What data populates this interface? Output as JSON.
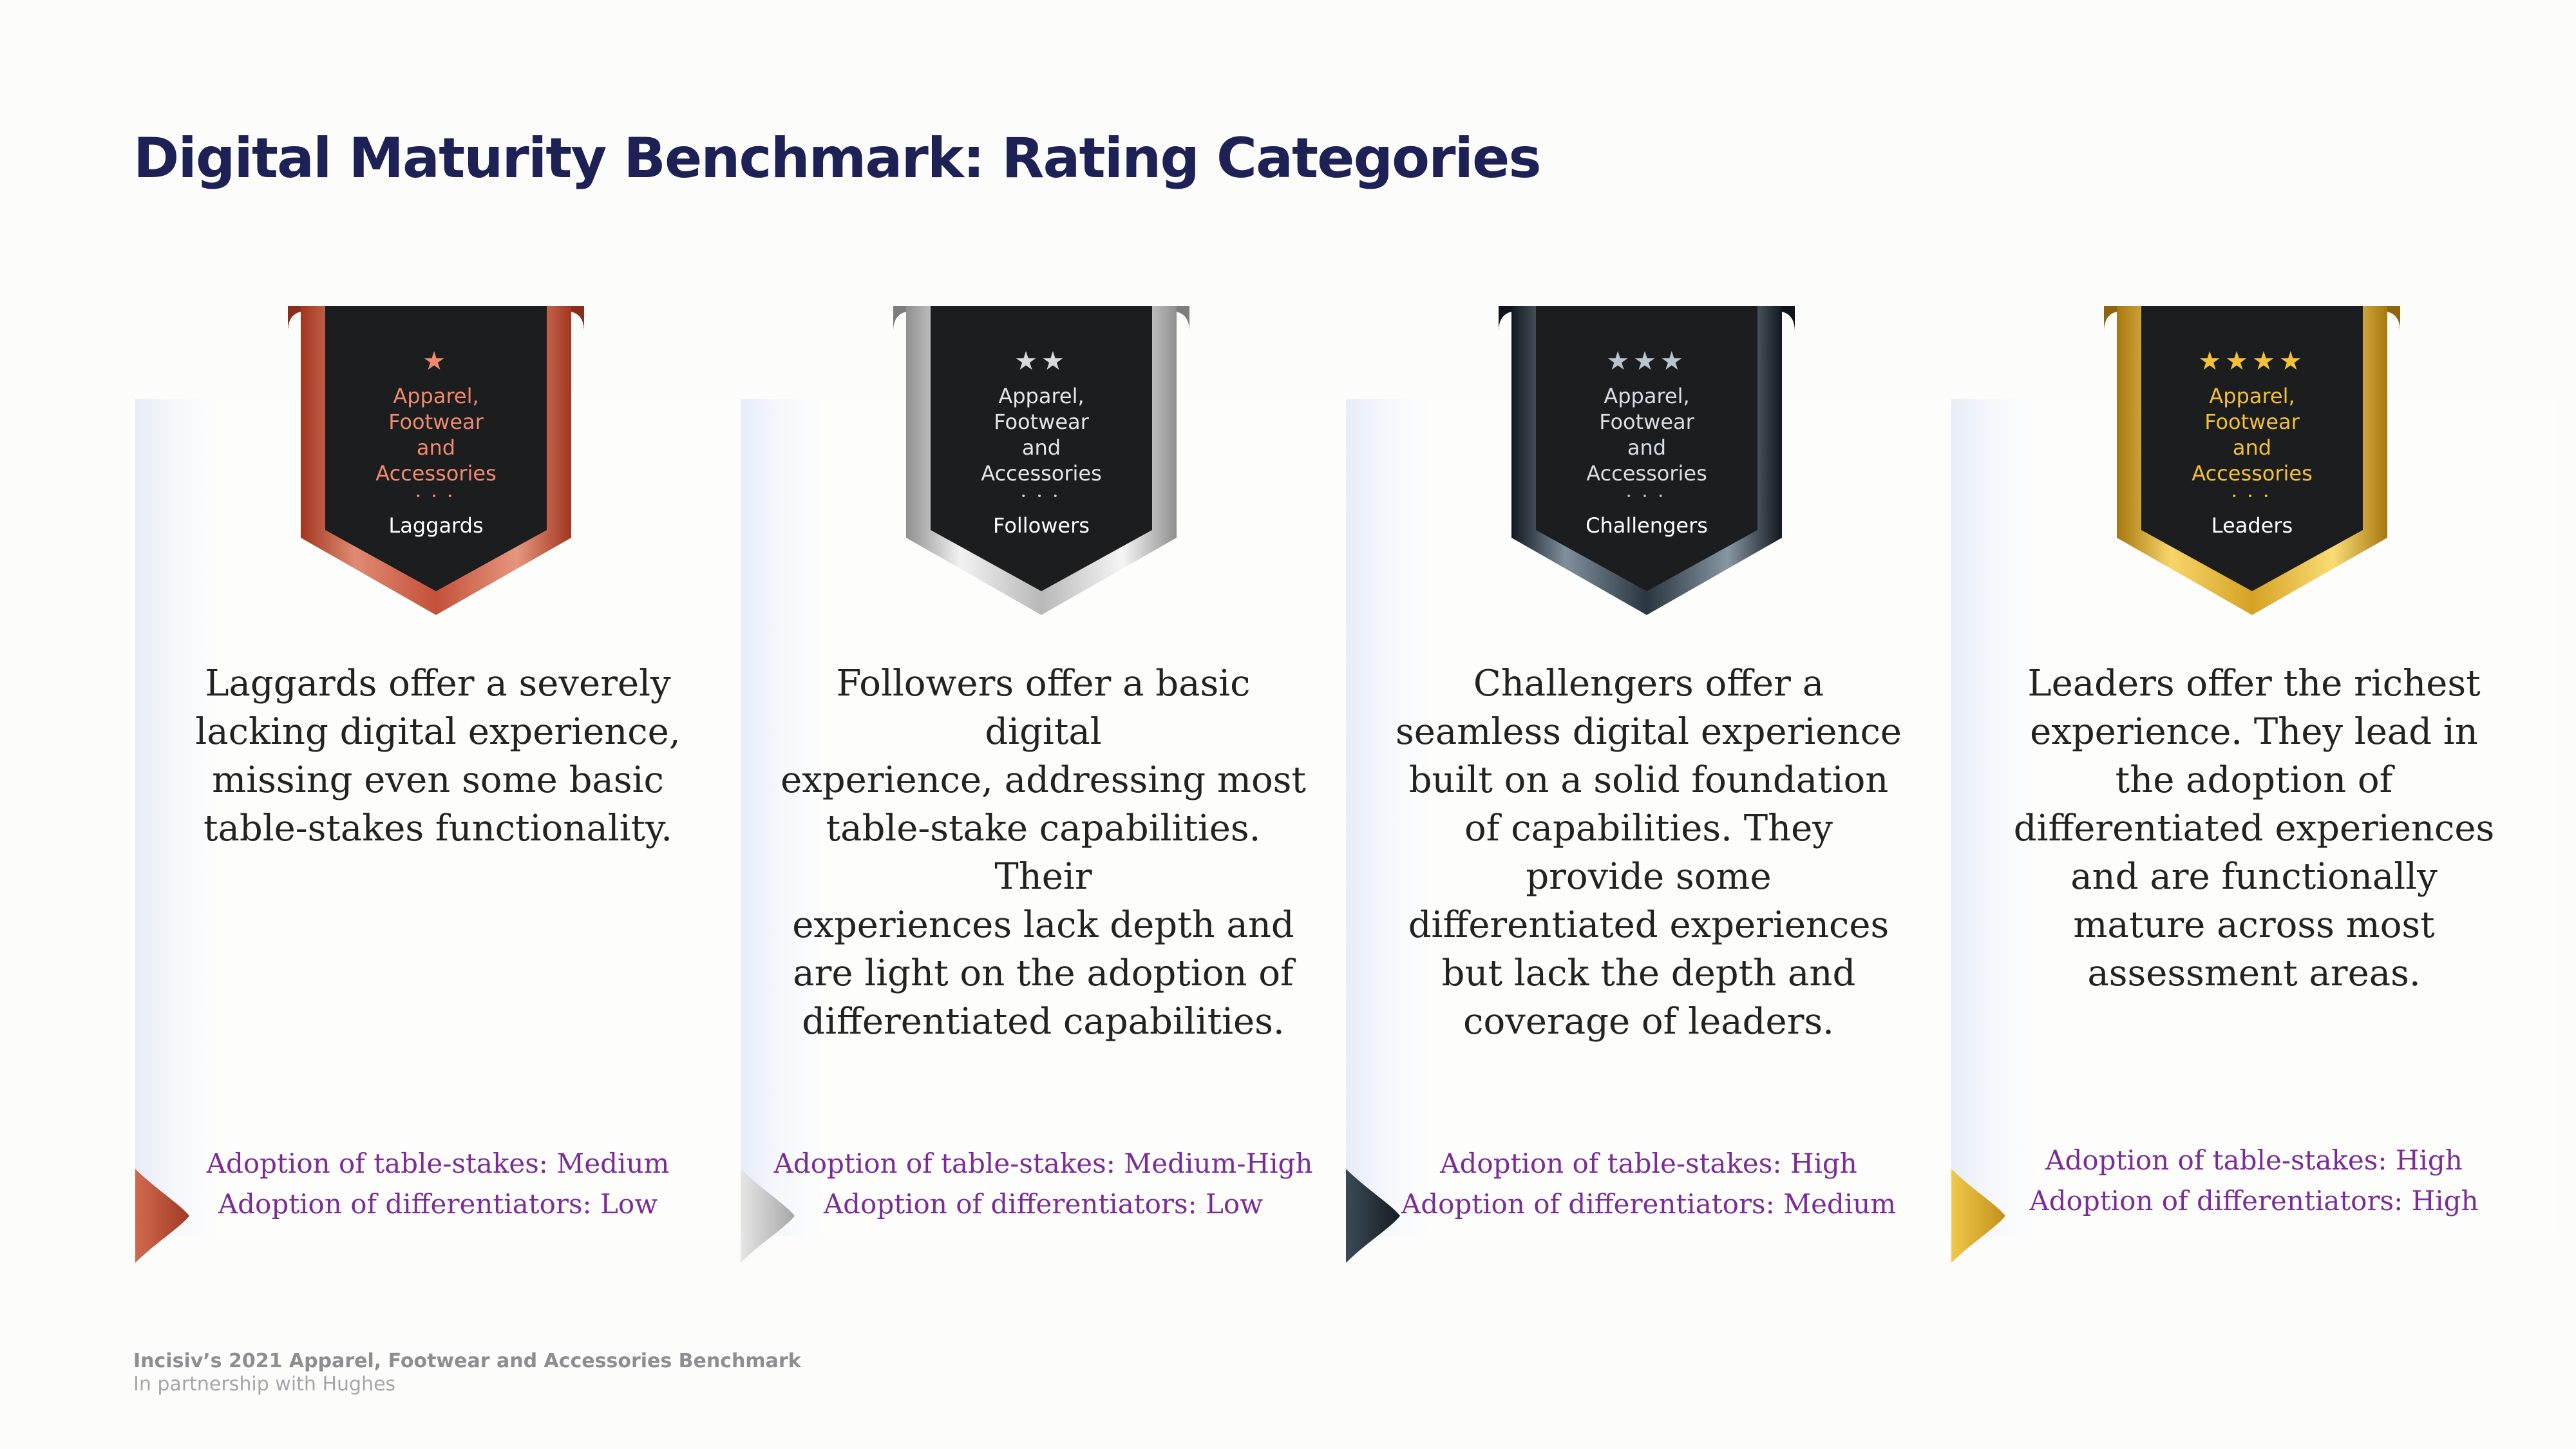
{
  "title": "Digital Maturity Benchmark: Rating Categories",
  "badge_region": "Apparel,\nFootwear\nand\nAccessories",
  "badge_separator": "• • •",
  "cards": [
    {
      "tier": "Laggards",
      "stars": "★",
      "star_count": 1,
      "color": "#c2553a",
      "description": "Laggards offer a severely\nlacking digital experience,\nmissing even some basic\ntable-stakes functionality.",
      "adoption_table_stakes": "Adoption of table-stakes: Medium",
      "adoption_differentiators": "Adoption of differentiators: Low"
    },
    {
      "tier": "Followers",
      "stars": "★★",
      "star_count": 2,
      "color": "#bcbcbc",
      "description": "Followers offer a basic digital\nexperience, addressing most\ntable-stake capabilities. Their\nexperiences lack depth and\nare light on the adoption of\ndifferentiated capabilities.",
      "adoption_table_stakes": "Adoption of table-stakes: Medium-High",
      "adoption_differentiators": "Adoption of differentiators: Low"
    },
    {
      "tier": "Challengers",
      "stars": "★★★",
      "star_count": 3,
      "color": "#26313c",
      "description": "Challengers offer a\nseamless digital experience\nbuilt on a solid foundation\nof capabilities. They\nprovide some\ndifferentiated experiences\nbut lack the depth and\ncoverage of leaders.",
      "adoption_table_stakes": "Adoption of table-stakes: High",
      "adoption_differentiators": "Adoption of differentiators: Medium"
    },
    {
      "tier": "Leaders",
      "stars": "★★★★",
      "star_count": 4,
      "color": "#d9a92a",
      "description": "Leaders offer the richest\nexperience. They lead in\nthe adoption of\ndifferentiated experiences\nand are functionally\nmature across most\nassessment areas.",
      "adoption_table_stakes": "Adoption of table-stakes: High",
      "adoption_differentiators": "Adoption of differentiators: High"
    }
  ],
  "footer": {
    "title": "Incisiv’s 2021 Apparel, Footwear and Accessories Benchmark",
    "subtitle": "In partnership with Hughes"
  }
}
